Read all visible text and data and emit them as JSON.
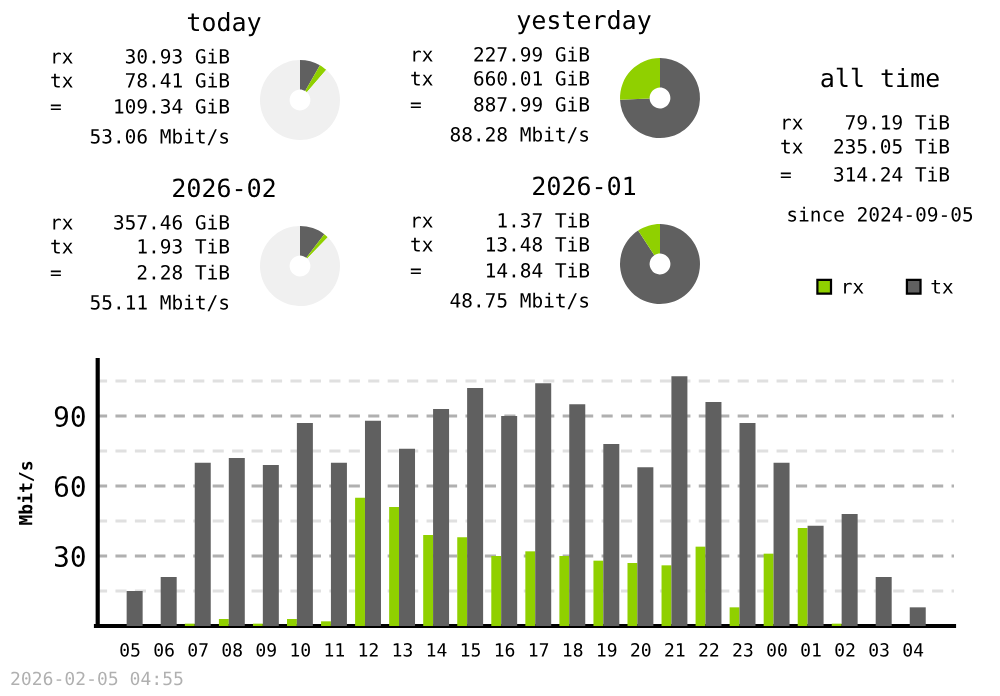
{
  "chart_data": [
    {
      "type": "donut",
      "title": "today",
      "categories": [
        null,
        null,
        null
      ],
      "values": [
        8.3,
        3.1,
        88.6
      ],
      "colors": [
        "#606060",
        "#90d000",
        "#f0f0f0"
      ],
      "annotations": [
        "rx",
        "30.93 GiB",
        "tx",
        "78.41 GiB",
        "=",
        "109.34 GiB",
        "53.06 Mbit/s"
      ]
    },
    {
      "type": "donut",
      "title": "yesterday",
      "categories": [
        null,
        null
      ],
      "values": [
        74.3,
        25.7
      ],
      "colors": [
        "#606060",
        "#90d000"
      ],
      "annotations": [
        "rx",
        "227.99 GiB",
        "tx",
        "660.01 GiB",
        "=",
        "887.99 GiB",
        "88.28 Mbit/s"
      ]
    },
    {
      "type": "other",
      "title": "all time",
      "annotations": [
        "rx",
        "79.19 TiB",
        "tx",
        "235.05 TiB",
        "=",
        "314.24 TiB",
        "since 2024-09-05"
      ]
    },
    {
      "type": "donut",
      "title": "2026-02",
      "categories": [
        null,
        null,
        null
      ],
      "values": [
        10.4,
        1.8,
        87.8
      ],
      "colors": [
        "#606060",
        "#90d000",
        "#f0f0f0"
      ],
      "annotations": [
        "rx",
        "357.46 GiB",
        "tx",
        "1.93 TiB",
        "=",
        "2.28 TiB",
        "55.11 Mbit/s"
      ]
    },
    {
      "type": "donut",
      "title": "2026-01",
      "categories": [
        null,
        null
      ],
      "values": [
        90.8,
        9.2
      ],
      "colors": [
        "#606060",
        "#90d000"
      ],
      "annotations": [
        "rx",
        "1.37 TiB",
        "tx",
        "13.48 TiB",
        "=",
        "14.84 TiB",
        "48.75 Mbit/s"
      ]
    },
    {
      "type": "bar",
      "ylabel": "Mbit/s",
      "categories": [
        "05",
        "06",
        "07",
        "08",
        "09",
        "10",
        "11",
        "12",
        "13",
        "14",
        "15",
        "16",
        "17",
        "18",
        "19",
        "20",
        "21",
        "22",
        "23",
        "00",
        "01",
        "02",
        "03",
        "04"
      ],
      "series": [
        {
          "name": "rx",
          "color": "#90d000",
          "values": [
            0,
            0,
            1,
            3,
            1,
            3,
            2,
            55,
            51,
            39,
            38,
            30,
            32,
            30,
            28,
            27,
            26,
            34,
            8,
            31,
            42,
            1,
            0,
            0
          ]
        },
        {
          "name": "tx",
          "color": "#606060",
          "values": [
            15,
            21,
            70,
            72,
            69,
            87,
            70,
            88,
            76,
            93,
            102,
            90,
            104,
            95,
            78,
            68,
            107,
            96,
            87,
            70,
            43,
            48,
            21,
            8
          ]
        }
      ],
      "ylim": [
        0,
        114
      ],
      "yticks": [
        {
          "value": 15,
          "label": null
        },
        30,
        {
          "value": 45,
          "label": null
        },
        60,
        {
          "value": 75,
          "label": null
        },
        90,
        {
          "value": 105,
          "label": null
        }
      ],
      "grid": "y",
      "legend": "top right",
      "annotations": [
        "2026-02-05 04:55"
      ]
    }
  ]
}
